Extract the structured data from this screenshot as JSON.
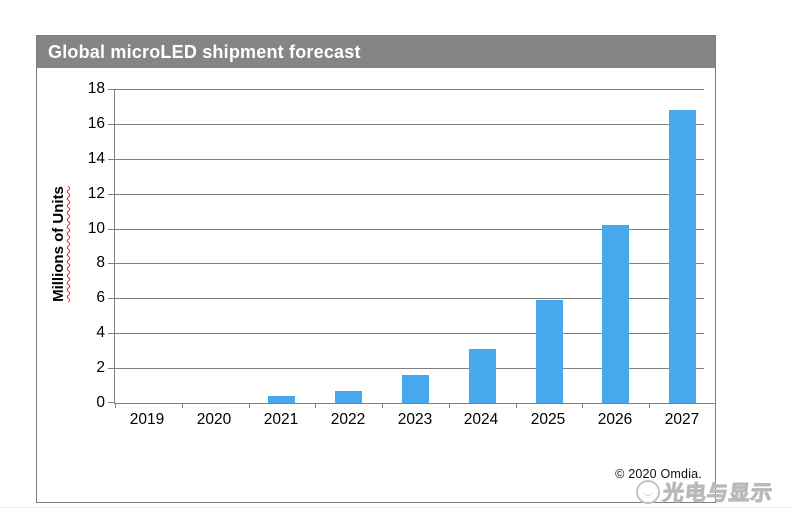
{
  "header": {
    "title": "Global microLED shipment forecast"
  },
  "chart_data": {
    "type": "bar",
    "title": "Global microLED shipment forecast",
    "categories": [
      "2019",
      "2020",
      "2021",
      "2022",
      "2023",
      "2024",
      "2025",
      "2026",
      "2027"
    ],
    "values": [
      0,
      0,
      0.4,
      0.7,
      1.6,
      3.1,
      5.9,
      10.2,
      16.8
    ],
    "xlabel": "",
    "ylabel": "Millions of Units",
    "ylim": [
      0,
      18
    ],
    "yticks": [
      0,
      2,
      4,
      6,
      8,
      10,
      12,
      14,
      16,
      18
    ],
    "grid": true,
    "legend": false,
    "bar_color": "#47A9ED"
  },
  "footer": {
    "copyright": "© 2020 Omdia."
  },
  "watermark": {
    "text": "光电与显示"
  },
  "colors": {
    "title_bar": "#858585",
    "bar": "#47A9ED",
    "axis": "#7F7F7F",
    "grid": "#7F7F7F",
    "ylabel_underline": "#D92B2B"
  }
}
